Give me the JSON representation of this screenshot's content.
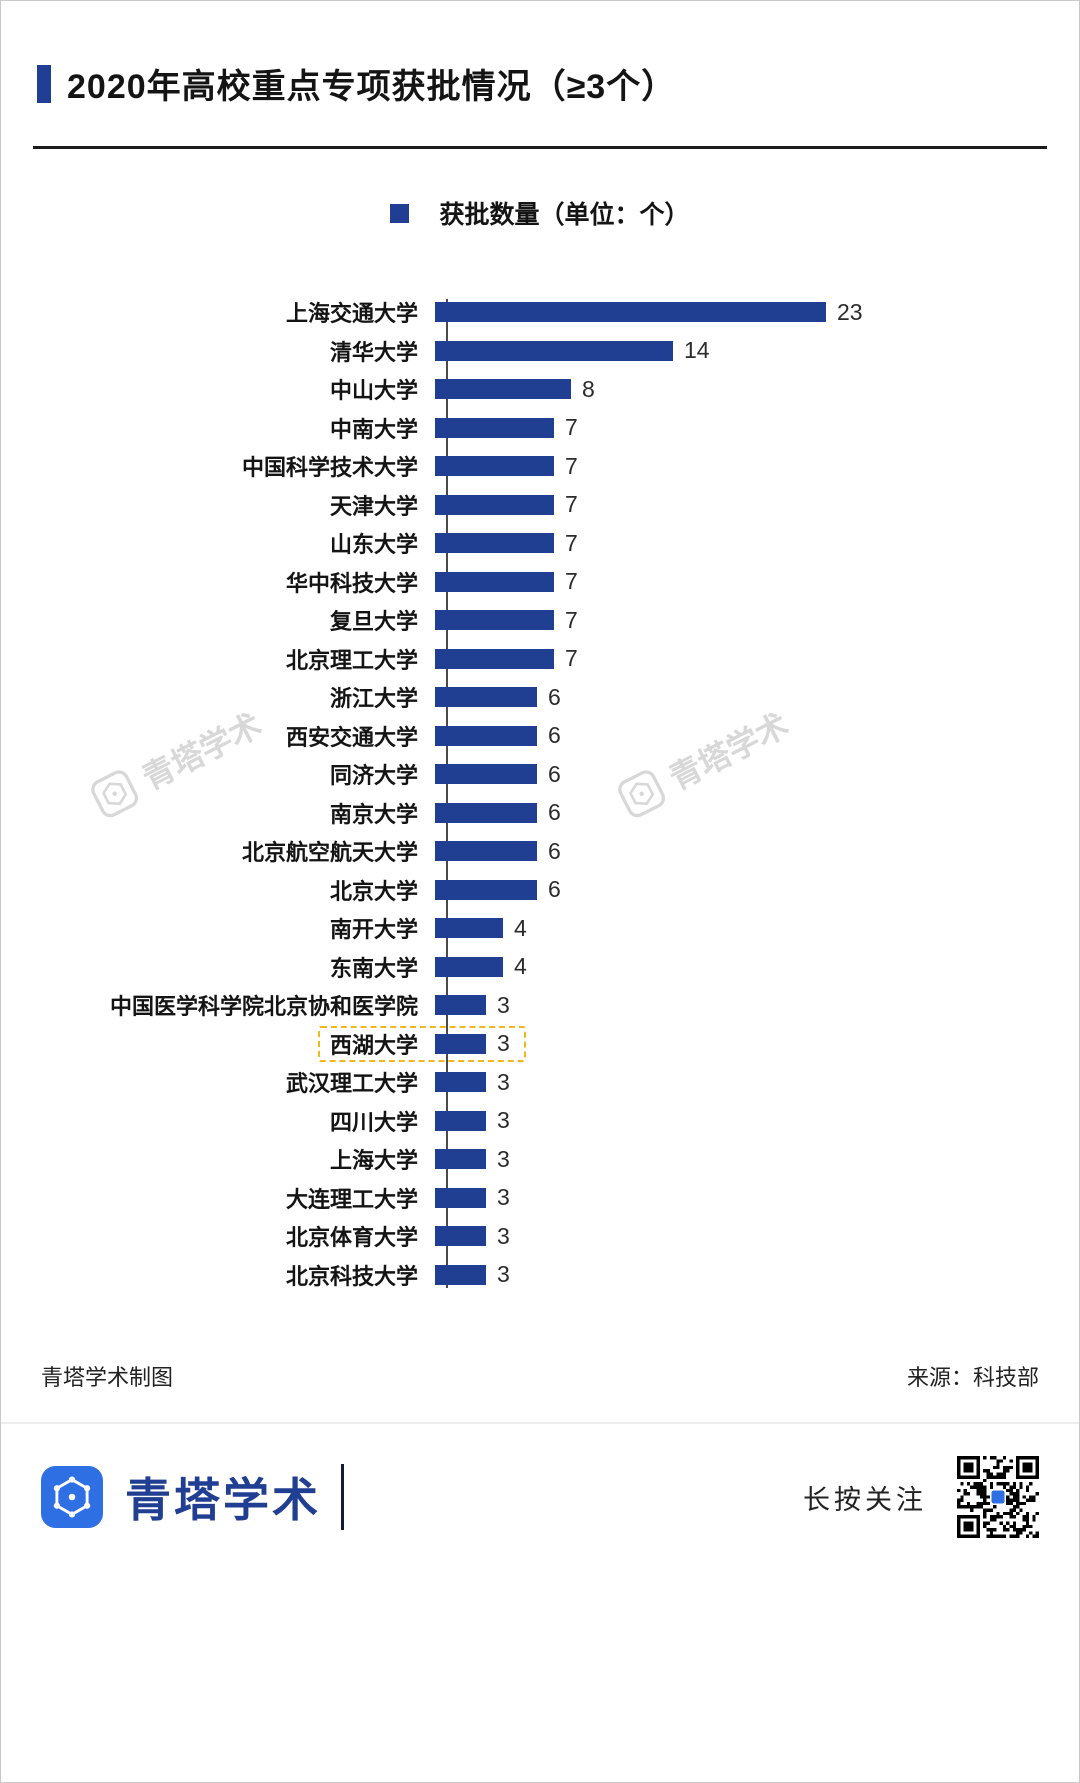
{
  "header": {
    "title": "2020年高校重点专项获批情况（≥3个）"
  },
  "chart_data": {
    "type": "bar",
    "orientation": "horizontal",
    "legend_label": "获批数量（单位：个）",
    "categories": [
      "上海交通大学",
      "清华大学",
      "中山大学",
      "中南大学",
      "中国科学技术大学",
      "天津大学",
      "山东大学",
      "华中科技大学",
      "复旦大学",
      "北京理工大学",
      "浙江大学",
      "西安交通大学",
      "同济大学",
      "南京大学",
      "北京航空航天大学",
      "北京大学",
      "南开大学",
      "东南大学",
      "中国医学科学院北京协和医学院",
      "西湖大学",
      "武汉理工大学",
      "四川大学",
      "上海大学",
      "大连理工大学",
      "北京体育大学",
      "北京科技大学"
    ],
    "values": [
      23,
      14,
      8,
      7,
      7,
      7,
      7,
      7,
      7,
      7,
      6,
      6,
      6,
      6,
      6,
      6,
      4,
      4,
      3,
      3,
      3,
      3,
      3,
      3,
      3,
      3
    ],
    "xlim": [
      0,
      24
    ],
    "bar_color": "#203e92",
    "highlighted_category": "西湖大学",
    "highlight_border_color": "#f3b61f",
    "grid": false,
    "legend_position": "top-center"
  },
  "watermark": {
    "text": "青塔学术"
  },
  "footer": {
    "left": "青塔学术制图",
    "right": "来源：科技部"
  },
  "brandbar": {
    "logo_text": "青塔学术",
    "follow_text": "长按关注"
  },
  "colors": {
    "accent": "#203e92",
    "logo_blue": "#2f6fe4",
    "highlight": "#f3b61f"
  }
}
